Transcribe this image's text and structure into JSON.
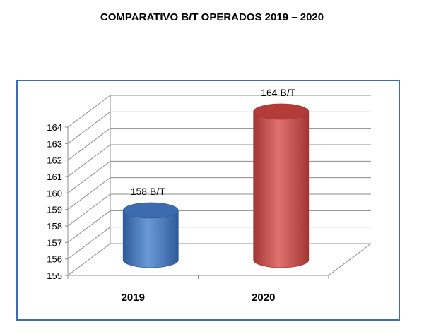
{
  "chart_data": {
    "type": "bar",
    "title": "COMPARATIVO B/T OPERADOS 2019 – 2020",
    "categories": [
      "2019",
      "2020"
    ],
    "series": [
      {
        "values": [
          158,
          164
        ]
      }
    ],
    "data_labels": [
      "158 B/T",
      "164 B/T"
    ],
    "ylim": [
      155,
      164
    ],
    "yticks": [
      "155",
      "156",
      "157",
      "158",
      "159",
      "160",
      "161",
      "162",
      "163",
      "164"
    ],
    "grid": true,
    "style": "3d-cylinder",
    "colors": {
      "2019": {
        "body": "#4a7cc4",
        "light": "#6b9ad8",
        "dark": "#2f5a99",
        "top": "#3c6bb0"
      },
      "2020": {
        "body": "#d0514d",
        "light": "#e07370",
        "dark": "#a33532",
        "top": "#b43c38"
      },
      "frame": "#3f6ea8",
      "grid": "#8c8c8c"
    }
  }
}
